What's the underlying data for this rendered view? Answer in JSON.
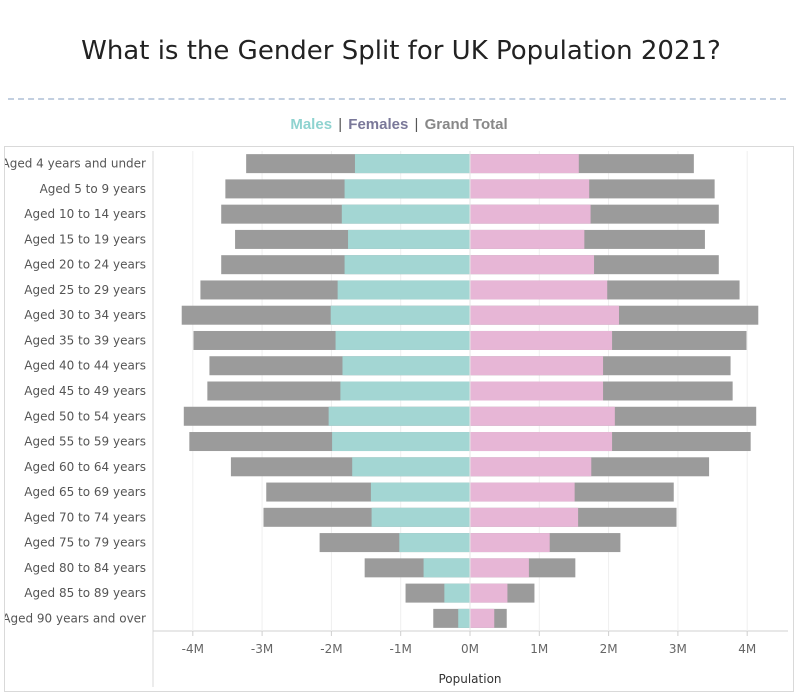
{
  "title": "What is the Gender Split for UK Population 2021?",
  "legend": {
    "males": "Males",
    "separator1": "|",
    "females": "Females",
    "separator2": "|",
    "grand_total": "Grand Total",
    "colors": {
      "males": "#a3d6d3",
      "females": "#e7b6d6",
      "grand_total": "#9b9b9b",
      "females_label": "#7a7899",
      "grand_total_label": "#888888"
    }
  },
  "chart_data": {
    "type": "bar",
    "orientation": "horizontal",
    "layout": "population-pyramid",
    "categories": [
      "Aged 4 years and under",
      "Aged 5 to 9 years",
      "Aged 10 to 14 years",
      "Aged 15 to 19 years",
      "Aged 20 to 24 years",
      "Aged 25 to 29 years",
      "Aged 30 to 34 years",
      "Aged 35 to 39 years",
      "Aged 40 to 44 years",
      "Aged 45 to 49 years",
      "Aged 50 to 54 years",
      "Aged 55 to 59 years",
      "Aged 60 to 64 years",
      "Aged 65 to 69 years",
      "Aged 70 to 74 years",
      "Aged 75 to 79 years",
      "Aged 80 to 84 years",
      "Aged 85 to 89 years",
      "Aged 90 years and over"
    ],
    "series": [
      {
        "name": "Grand Total",
        "color": "#9b9b9b",
        "left": [
          -3.23,
          -3.53,
          -3.59,
          -3.39,
          -3.59,
          -3.89,
          -4.16,
          -3.99,
          -3.76,
          -3.79,
          -4.13,
          -4.05,
          -3.45,
          -2.94,
          -2.98,
          -2.17,
          -1.52,
          -0.93,
          -0.53
        ],
        "right": [
          3.23,
          3.53,
          3.59,
          3.39,
          3.59,
          3.89,
          4.16,
          3.99,
          3.76,
          3.79,
          4.13,
          4.05,
          3.45,
          2.94,
          2.98,
          2.17,
          1.52,
          0.93,
          0.53
        ]
      },
      {
        "name": "Males",
        "color": "#a3d6d3",
        "values": [
          -1.66,
          -1.81,
          -1.85,
          -1.76,
          -1.81,
          -1.91,
          -2.01,
          -1.94,
          -1.84,
          -1.87,
          -2.04,
          -1.99,
          -1.7,
          -1.43,
          -1.42,
          -1.02,
          -0.67,
          -0.37,
          -0.17
        ]
      },
      {
        "name": "Females",
        "color": "#e7b6d6",
        "values": [
          1.57,
          1.72,
          1.74,
          1.65,
          1.79,
          1.98,
          2.15,
          2.05,
          1.92,
          1.92,
          2.09,
          2.05,
          1.75,
          1.51,
          1.56,
          1.15,
          0.85,
          0.54,
          0.35
        ]
      }
    ],
    "x_ticks": [
      -4,
      -3,
      -2,
      -1,
      0,
      1,
      2,
      3,
      4
    ],
    "x_tick_labels": [
      "-4M",
      "-3M",
      "-2M",
      "-1M",
      "0M",
      "1M",
      "2M",
      "3M",
      "4M"
    ],
    "xlim": [
      -4.5,
      4.2
    ],
    "xlabel": "Population",
    "ylabel": "",
    "unit": "millions",
    "grid": "vertical"
  }
}
